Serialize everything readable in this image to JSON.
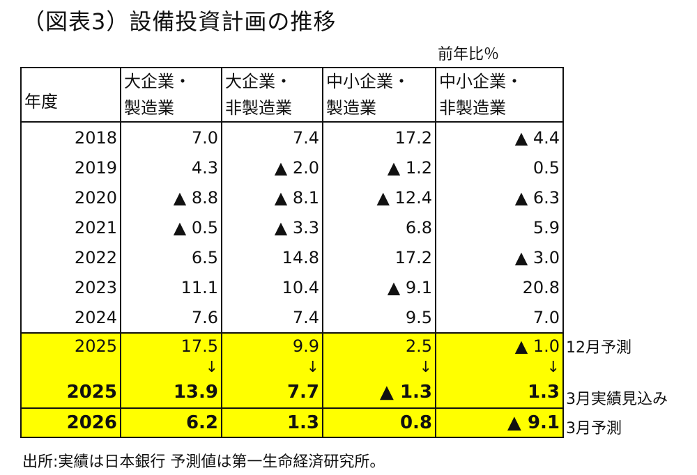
{
  "title": "（図表3）設備投資計画の推移",
  "unit": "前年比％",
  "header": {
    "year": "年度",
    "cols": [
      [
        "大企業・",
        "製造業"
      ],
      [
        "大企業・",
        "非製造業"
      ],
      [
        "中小企業・",
        "製造業"
      ],
      [
        "中小企業・",
        "非製造業"
      ]
    ]
  },
  "rows": [
    {
      "year": "2018",
      "values": [
        "7.0",
        "7.4",
        "17.2",
        "▲ 4.4"
      ]
    },
    {
      "year": "2019",
      "values": [
        "4.3",
        "▲ 2.0",
        "▲ 1.2",
        "0.5"
      ]
    },
    {
      "year": "2020",
      "values": [
        "▲ 8.8",
        "▲ 8.1",
        "▲ 12.4",
        "▲ 6.3"
      ]
    },
    {
      "year": "2021",
      "values": [
        "▲ 0.5",
        "▲ 3.3",
        "6.8",
        "5.9"
      ]
    },
    {
      "year": "2022",
      "values": [
        "6.5",
        "14.8",
        "17.2",
        "▲ 3.0"
      ]
    },
    {
      "year": "2023",
      "values": [
        "11.1",
        "10.4",
        "▲ 9.1",
        "20.8"
      ]
    },
    {
      "year": "2024",
      "values": [
        "7.6",
        "7.4",
        "9.5",
        "7.0"
      ]
    }
  ],
  "forecast_dec": {
    "year": "2025",
    "values": [
      "17.5",
      "9.9",
      "2.5",
      "▲ 1.0"
    ],
    "note": "12月予測"
  },
  "arrow": "↓",
  "estimate_mar": {
    "year": "2025",
    "values": [
      "13.9",
      "7.7",
      "▲ 1.3",
      "1.3"
    ],
    "note": "3月実績見込み"
  },
  "forecast_mar": {
    "year": "2026",
    "values": [
      "6.2",
      "1.3",
      "0.8",
      "▲ 9.1"
    ],
    "note": "3月予測"
  },
  "source": "出所:実績は日本銀行  予測値は第一生命経済研究所。",
  "colors": {
    "highlight": "#ffff00",
    "border": "#111111"
  }
}
